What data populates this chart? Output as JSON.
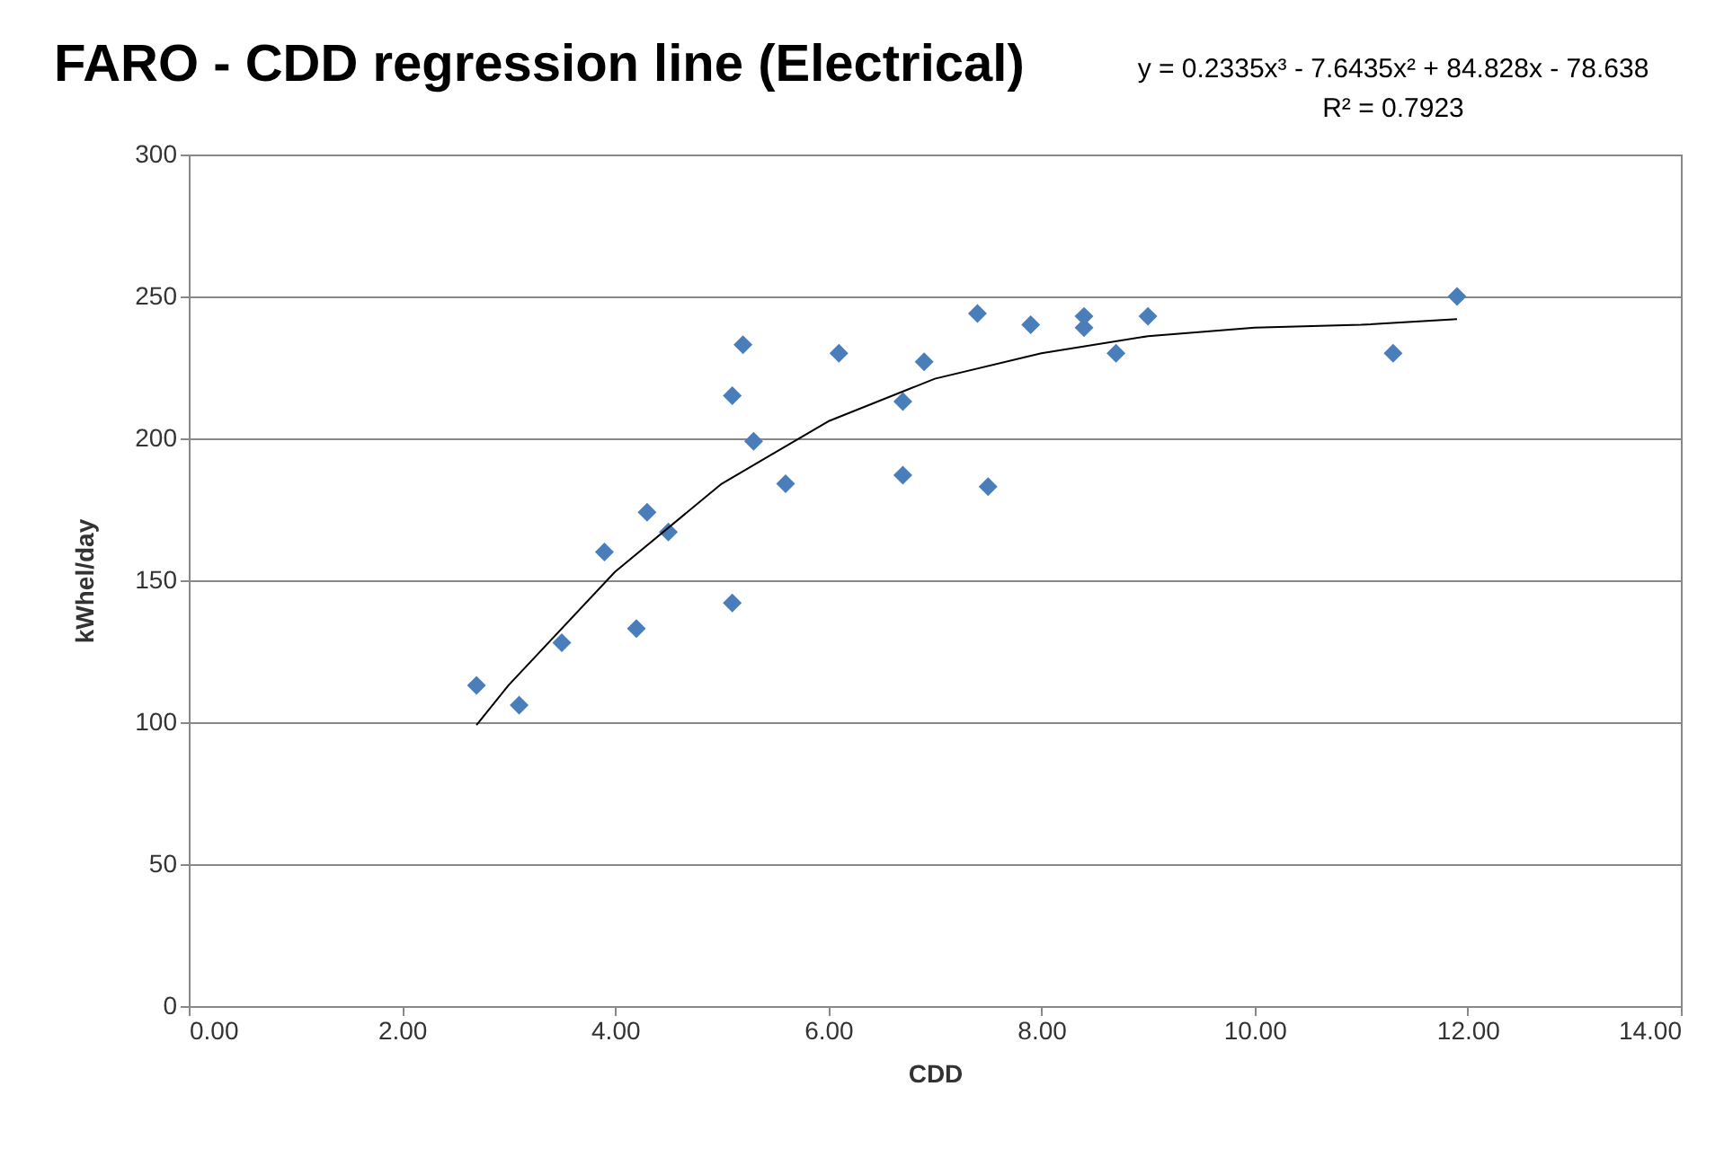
{
  "chart_data": {
    "type": "scatter",
    "title": "FARO - CDD regression line (Electrical)",
    "xlabel": "CDD",
    "ylabel": "kWhel/day",
    "annotations": [
      "y = 0.2335x³ - 7.6435x² + 84.828x - 78.638",
      "R² = 0.7923"
    ],
    "xlim": [
      0,
      14
    ],
    "xticks": [
      {
        "value": 0,
        "label": "0.00"
      },
      {
        "value": 2,
        "label": "2.00"
      },
      {
        "value": 4,
        "label": "4.00"
      },
      {
        "value": 6,
        "label": "6.00"
      },
      {
        "value": 8,
        "label": "8.00"
      },
      {
        "value": 10,
        "label": "10.00"
      },
      {
        "value": 12,
        "label": "12.00"
      },
      {
        "value": 14,
        "label": "14.00"
      }
    ],
    "ylim": [
      0,
      300
    ],
    "yticks": [
      0,
      50,
      100,
      150,
      200,
      250,
      300
    ],
    "grid": "y",
    "series": [
      {
        "marker": "diamond",
        "color": "#4a7ebb",
        "x": [
          2.7,
          3.1,
          3.5,
          3.9,
          4.3,
          4.2,
          4.5,
          5.1,
          5.1,
          5.2,
          5.3,
          5.6,
          6.1,
          6.7,
          6.7,
          6.9,
          7.4,
          7.5,
          7.9,
          8.4,
          8.4,
          8.7,
          9.0,
          11.3,
          11.9
        ],
        "values": [
          113,
          106,
          128,
          160,
          174,
          133,
          167,
          142,
          215,
          233,
          199,
          184,
          230,
          213,
          187,
          227,
          244,
          183,
          240,
          243,
          239,
          230,
          243,
          230,
          250
        ]
      },
      {
        "type": "line",
        "marker": "none",
        "line_style": "solid",
        "color": "#000000",
        "x": [
          2.7,
          3,
          4,
          5,
          6,
          7,
          8,
          9,
          10,
          11,
          11.9
        ],
        "values": [
          99,
          113,
          153,
          184,
          206,
          221,
          230,
          236,
          239,
          240,
          242
        ]
      }
    ]
  }
}
